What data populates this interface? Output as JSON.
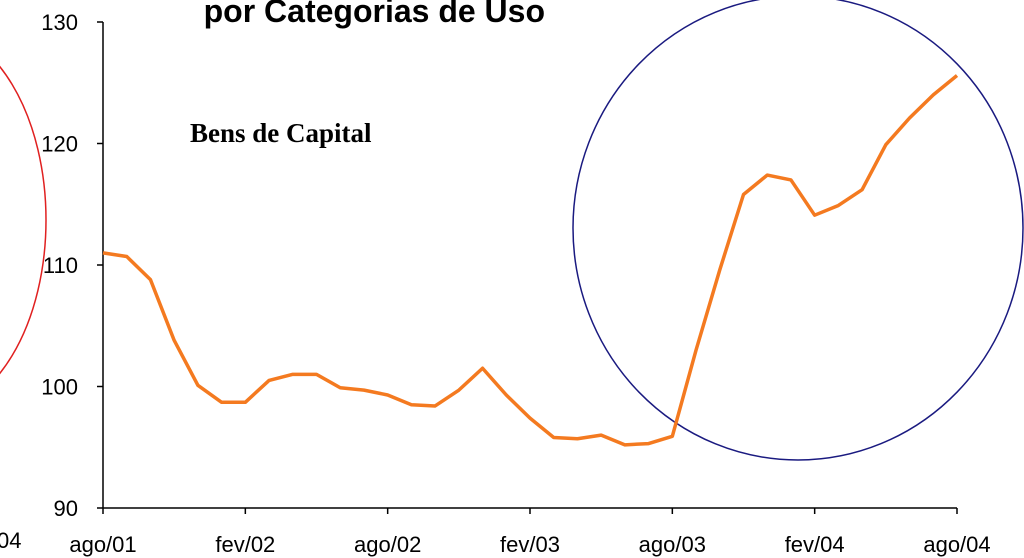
{
  "chart_data": {
    "type": "line",
    "title": "por Categorias de Uso",
    "annotation": "Bens de Capital",
    "edge_label": "04",
    "categories": [
      "ago/01",
      null,
      null,
      null,
      null,
      null,
      "fev/02",
      null,
      null,
      null,
      null,
      null,
      "ago/02",
      null,
      null,
      null,
      null,
      null,
      "fev/03",
      null,
      null,
      null,
      null,
      null,
      "ago/03",
      null,
      null,
      null,
      null,
      null,
      "fev/04",
      null,
      null,
      null,
      null,
      null,
      "ago/04"
    ],
    "series": [
      {
        "name": "Bens de Capital",
        "color": "#f47a20",
        "values": [
          111,
          110.7,
          108.8,
          103.8,
          100.1,
          98.7,
          98.7,
          100.5,
          101,
          101,
          99.9,
          99.7,
          99.3,
          98.5,
          98.4,
          99.7,
          101.5,
          99.3,
          97.4,
          95.8,
          95.7,
          96,
          95.2,
          95.3,
          95.9,
          103,
          109.6,
          115.8,
          117.4,
          117,
          114.1,
          114.9,
          116.2,
          119.9,
          122.1,
          124,
          125.6
        ]
      }
    ],
    "ylim": [
      90,
      130
    ],
    "yticks": [
      90,
      100,
      110,
      120,
      130
    ]
  }
}
